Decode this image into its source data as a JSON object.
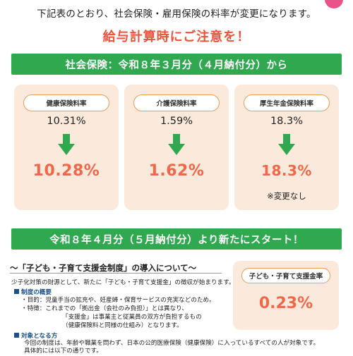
{
  "header": {
    "intro": "下記表のとおり、社会保険・雇用保険の料率が変更になります。",
    "warning": "給与計算時にご注意を！"
  },
  "section1": {
    "banner": "社会保険：令和８年３月分（４月納付分）から",
    "cards": [
      {
        "label": "健康保険料率",
        "old_rate": "10.31%",
        "new_rate": "10.28%",
        "note": ""
      },
      {
        "label": "介護保険料率",
        "old_rate": "1.59%",
        "new_rate": "1.62%",
        "note": ""
      },
      {
        "label": "厚生年金保険料率",
        "old_rate": "18.3%",
        "new_rate": "18.3%",
        "note": "※変更なし"
      }
    ]
  },
  "section2": {
    "banner": "令和８年４月分（５月納付分）より新たにスタート！",
    "subhead": "～「子ども・子育て支援金制度」の導入について～",
    "intro": "少子化対策の財源として、新たに「子ども・子育て支援金」の徴収が始まります。",
    "overview_label": "制度の概要",
    "purpose": "・目的：児童手当の拡充や、妊産婦・保育サービスの充実などのため。",
    "feature_1": "・特徴：これまでの「拠出金（会社のみ負担）」とは異なり、",
    "feature_2": "「支援金」は事業主と従業員の双方が負担するもの",
    "feature_3": "（健康保険料と同様の仕組み）となります。",
    "target_label": "対象となる方",
    "target_1": "今回の制度は、年齢や職業を問わず、日本の公的医療保険（健康保険）に入っているすべての人が対象です。",
    "target_2": "具体的には以下の通りです。",
    "side_card": {
      "label": "子ども・子育て支援金率",
      "rate": "0.23%"
    }
  },
  "colors": {
    "banner_green": "#2fa84f",
    "accent_orange": "#f0674a",
    "warning_red": "#f0523a",
    "card_bg": "#fbe9dc",
    "arrow_green": "#2fa84f",
    "pill_border": "#ef9c57",
    "label_blue": "#1a4f8a"
  },
  "icons": {
    "arrow": "down-arrow-icon",
    "bullet": "square-bullet-icon"
  }
}
